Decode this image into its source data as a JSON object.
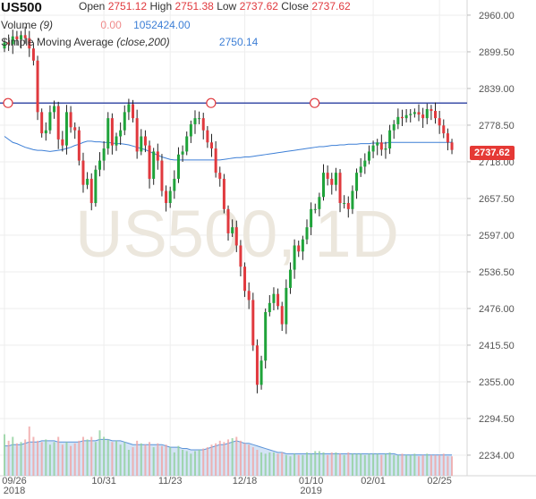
{
  "header": {
    "symbol": "US500",
    "open_label": "Open",
    "open_value": "2751.12",
    "high_label": "High",
    "high_value": "2751.38",
    "low_label": "Low",
    "low_value": "2737.62",
    "close_label": "Close",
    "close_value": "2737.62",
    "volume_label": "Volume",
    "volume_period": "(9)",
    "volume_change": "0.00",
    "volume_value": "1052424.00",
    "sma_label": "Simple Moving Average",
    "sma_params": "(close,200)",
    "sma_value": "2750.14"
  },
  "watermark": "US500, 1D",
  "last_price": "2737.62",
  "colors": {
    "up": "#1fa33a",
    "down": "#e0393e",
    "sma": "#3d7fd6",
    "hline": "#3c4fa8",
    "volume": "#9fc3ec"
  },
  "chart_data": {
    "type": "candlestick",
    "y_ticks": [
      "2960.00",
      "2899.50",
      "2839.00",
      "2778.50",
      "2718.00",
      "2657.50",
      "2597.00",
      "2536.50",
      "2476.00",
      "2415.50",
      "2355.00",
      "2294.50",
      "2234.00"
    ],
    "ylim": [
      2200,
      2985
    ],
    "x_ticks": [
      {
        "index": 0,
        "label": "09/26",
        "sub": "2018"
      },
      {
        "index": 24,
        "label": "10/31",
        "sub": ""
      },
      {
        "index": 40,
        "label": "11/23",
        "sub": ""
      },
      {
        "index": 58,
        "label": "12/18",
        "sub": ""
      },
      {
        "index": 74,
        "label": "01/10",
        "sub": "2019"
      },
      {
        "index": 89,
        "label": "02/01",
        "sub": ""
      },
      {
        "index": 105,
        "label": "02/25",
        "sub": ""
      }
    ],
    "resistance_level": 2815,
    "resistance_markers_index": [
      0,
      49,
      74
    ],
    "close": [
      2915,
      2912,
      2925,
      2920,
      2927,
      2922,
      2905,
      2885,
      2800,
      2765,
      2770,
      2800,
      2810,
      2755,
      2745,
      2800,
      2775,
      2770,
      2720,
      2680,
      2690,
      2650,
      2705,
      2720,
      2740,
      2790,
      2745,
      2760,
      2770,
      2800,
      2813,
      2790,
      2735,
      2760,
      2745,
      2690,
      2735,
      2720,
      2670,
      2650,
      2670,
      2690,
      2730,
      2735,
      2760,
      2780,
      2790,
      2790,
      2770,
      2750,
      2740,
      2700,
      2690,
      2640,
      2600,
      2610,
      2580,
      2545,
      2505,
      2490,
      2415,
      2350,
      2390,
      2470,
      2485,
      2500,
      2480,
      2450,
      2510,
      2540,
      2580,
      2570,
      2590,
      2610,
      2640,
      2640,
      2660,
      2700,
      2690,
      2680,
      2700,
      2650,
      2650,
      2640,
      2670,
      2700,
      2710,
      2720,
      2735,
      2745,
      2750,
      2738,
      2740,
      2770,
      2780,
      2792,
      2790,
      2795,
      2797,
      2800,
      2796,
      2790,
      2805,
      2802,
      2790,
      2778,
      2765,
      2750,
      2737.62
    ],
    "volume": [
      32,
      27,
      30,
      25,
      26,
      28,
      38,
      30,
      27,
      26,
      28,
      24,
      26,
      30,
      24,
      26,
      23,
      25,
      27,
      30,
      28,
      30,
      26,
      35,
      30,
      28,
      26,
      27,
      24,
      26,
      20,
      22,
      27,
      25,
      24,
      26,
      22,
      25,
      23,
      24,
      22,
      18,
      23,
      20,
      19,
      17,
      19,
      20,
      21,
      22,
      24,
      25,
      27,
      26,
      28,
      29,
      30,
      27,
      25,
      24,
      22,
      20,
      18,
      17,
      18,
      18,
      17,
      18,
      16,
      15,
      17,
      16,
      16,
      18,
      17,
      19,
      19,
      18,
      16,
      18,
      18,
      17,
      16,
      18,
      17,
      17,
      17,
      16,
      17,
      17,
      17,
      16,
      17,
      18,
      16,
      16,
      17,
      16,
      16,
      17,
      15,
      16,
      17,
      16,
      16,
      16,
      17,
      15,
      15
    ],
    "sma": [
      2760,
      2755,
      2750,
      2748,
      2745,
      2742,
      2740,
      2738,
      2737,
      2737,
      2736,
      2735,
      2736,
      2737,
      2738,
      2740,
      2742,
      2745,
      2747,
      2750,
      2752,
      2752,
      2751,
      2751,
      2750,
      2750,
      2749,
      2748,
      2748,
      2747,
      2746,
      2744,
      2742,
      2740,
      2738,
      2735,
      2732,
      2729,
      2726,
      2724,
      2722,
      2721,
      2721,
      2721,
      2721,
      2721,
      2721,
      2721,
      2721,
      2721,
      2721,
      2721,
      2721,
      2722,
      2723,
      2724,
      2725,
      2725,
      2726,
      2726,
      2727,
      2728,
      2729,
      2730,
      2731,
      2732,
      2733,
      2734,
      2735,
      2736,
      2737,
      2738,
      2739,
      2740,
      2741,
      2742,
      2743,
      2743,
      2744,
      2745,
      2745,
      2746,
      2746,
      2747,
      2747,
      2747,
      2748,
      2748,
      2748,
      2749,
      2749,
      2749,
      2749,
      2750,
      2750,
      2750,
      2750,
      2750,
      2750,
      2750,
      2750,
      2750,
      2750,
      2750,
      2750,
      2750,
      2750,
      2750,
      2750.14
    ],
    "volume_avg": [
      23,
      23,
      24,
      24,
      24,
      25,
      26,
      26,
      26,
      27,
      27,
      27,
      27,
      26,
      26,
      26,
      26,
      26,
      26,
      27,
      27,
      27,
      27,
      28,
      28,
      28,
      27,
      27,
      27,
      26,
      25,
      24,
      24,
      24,
      24,
      24,
      24,
      24,
      24,
      23,
      22,
      22,
      22,
      21,
      21,
      20,
      20,
      20,
      20,
      21,
      22,
      23,
      24,
      24,
      25,
      26,
      27,
      26,
      25,
      25,
      24,
      23,
      22,
      21,
      20,
      19,
      18,
      18,
      17,
      17,
      17,
      17,
      17,
      17,
      17,
      17,
      17,
      17,
      17,
      17,
      17,
      17,
      17,
      17,
      17,
      17,
      17,
      17,
      17,
      17,
      17,
      17,
      17,
      17,
      17,
      16,
      16,
      16,
      16,
      16,
      16,
      16,
      16,
      16,
      16,
      16,
      16,
      16,
      16
    ]
  }
}
